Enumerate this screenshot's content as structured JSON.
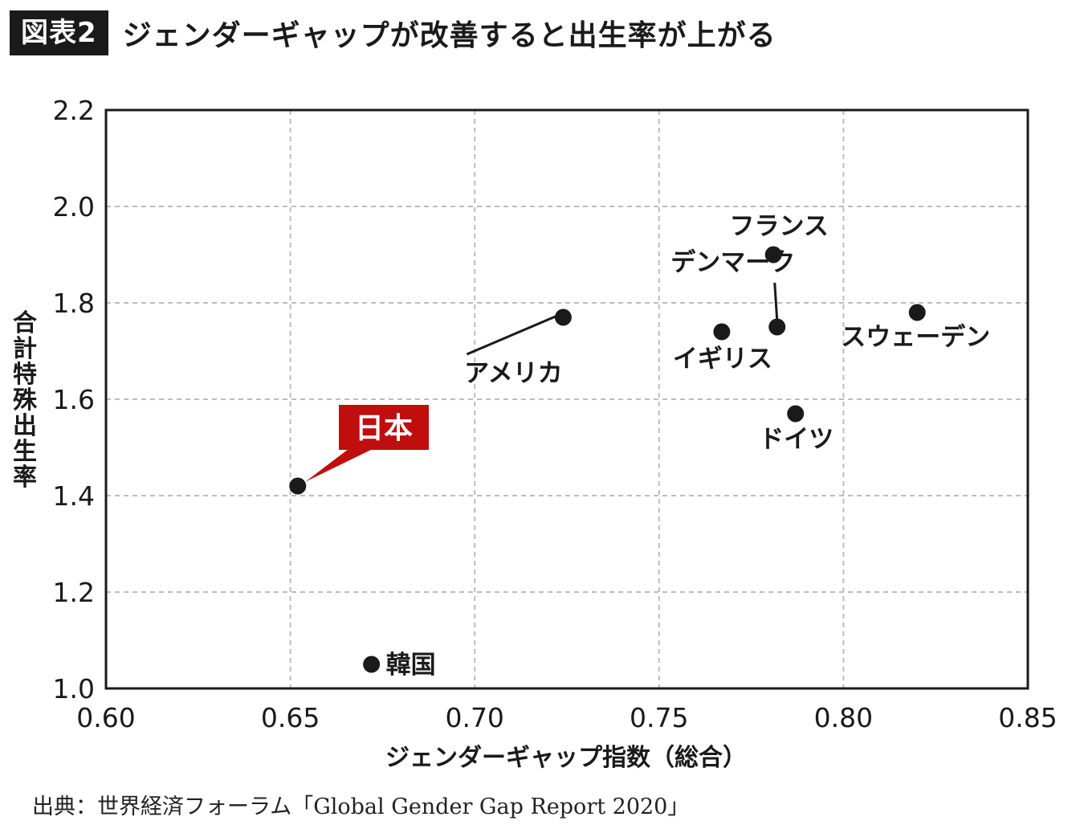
{
  "header": {
    "badge": "図表2",
    "title": "ジェンダーギャップが改善すると出生率が上がる"
  },
  "source": "出典：世界経済フォーラム「Global Gender Gap Report 2020」",
  "chart_data": {
    "type": "scatter",
    "title": "",
    "xlabel": "ジェンダーギャップ指数（総合）",
    "ylabel": "合計特殊出生率",
    "xlim": [
      0.6,
      0.85
    ],
    "ylim": [
      1.0,
      2.2
    ],
    "xticks": [
      "0.60",
      "0.65",
      "0.70",
      "0.75",
      "0.80",
      "0.85"
    ],
    "yticks": [
      "1.0",
      "1.2",
      "1.4",
      "1.6",
      "1.8",
      "2.0",
      "2.2"
    ],
    "grid": true,
    "highlight_color": "#c00d0d",
    "point_color": "#1a1a1a",
    "points": [
      {
        "name": "日本",
        "x": 0.652,
        "y": 1.42,
        "highlight": true
      },
      {
        "name": "韓国",
        "x": 0.672,
        "y": 1.05
      },
      {
        "name": "アメリカ",
        "x": 0.724,
        "y": 1.77
      },
      {
        "name": "デンマーク",
        "x": 0.782,
        "y": 1.75
      },
      {
        "name": "イギリス",
        "x": 0.767,
        "y": 1.74
      },
      {
        "name": "フランス",
        "x": 0.781,
        "y": 1.9
      },
      {
        "name": "スウェーデン",
        "x": 0.82,
        "y": 1.78
      },
      {
        "name": "ドイツ",
        "x": 0.787,
        "y": 1.57
      }
    ]
  }
}
